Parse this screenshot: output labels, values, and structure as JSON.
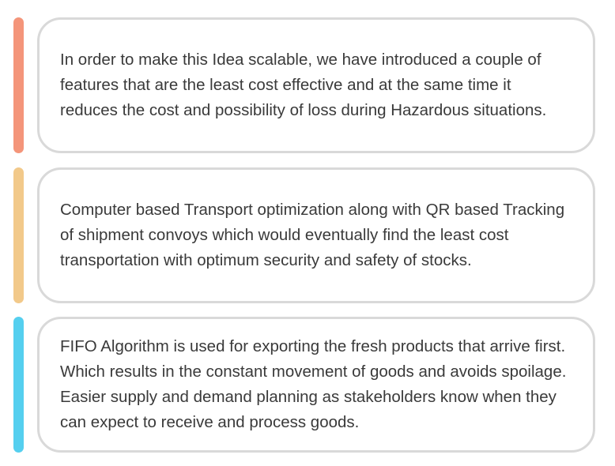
{
  "items": [
    {
      "text": "In order to make this Idea scalable, we have introduced a couple of features that are the least cost effective and at the same time it reduces the cost and possibility of loss during Hazardous situations.",
      "accent_color": "#f4957a"
    },
    {
      "text": "Computer based Transport optimization along with QR based Tracking of shipment convoys which would eventually find the least cost transportation with optimum security and safety of stocks.",
      "accent_color": "#f2c98a"
    },
    {
      "text": "FIFO Algorithm is used for exporting the fresh products that arrive first. Which results in the constant movement of goods and avoids spoilage. Easier supply and demand planning as stakeholders know when they can expect to receive and process goods.",
      "accent_color": "#55cfef"
    }
  ]
}
